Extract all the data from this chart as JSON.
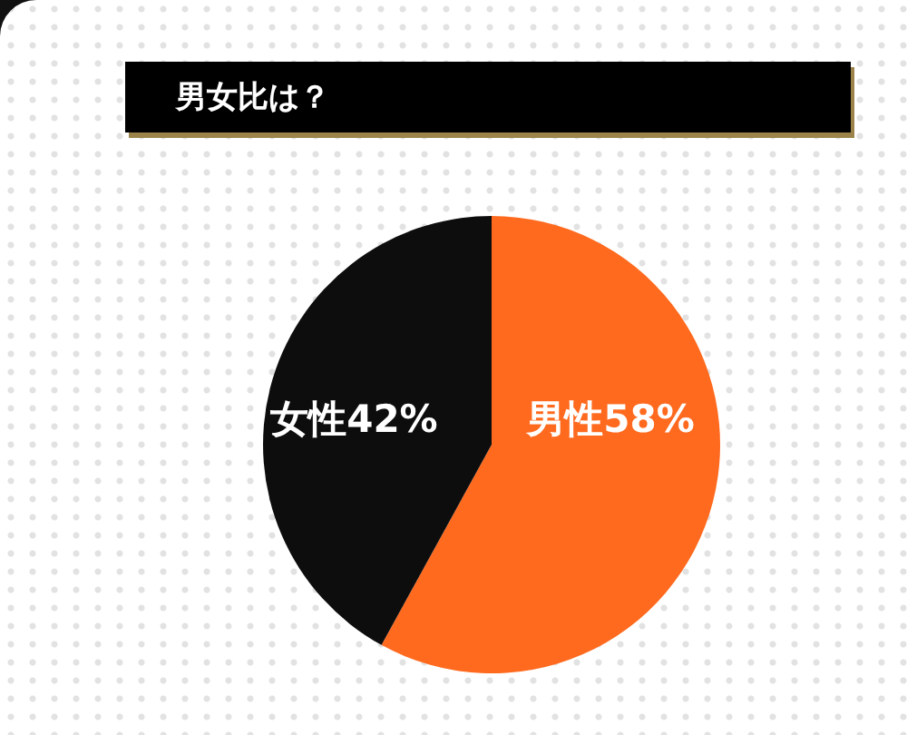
{
  "chart_data": {
    "type": "pie",
    "title": "男女比は？",
    "categories": [
      "男性",
      "女性"
    ],
    "values": [
      58,
      42
    ],
    "colors": [
      "#ff6a1e",
      "#0d0d0d"
    ],
    "value_labels": [
      "58%",
      "42%"
    ]
  }
}
